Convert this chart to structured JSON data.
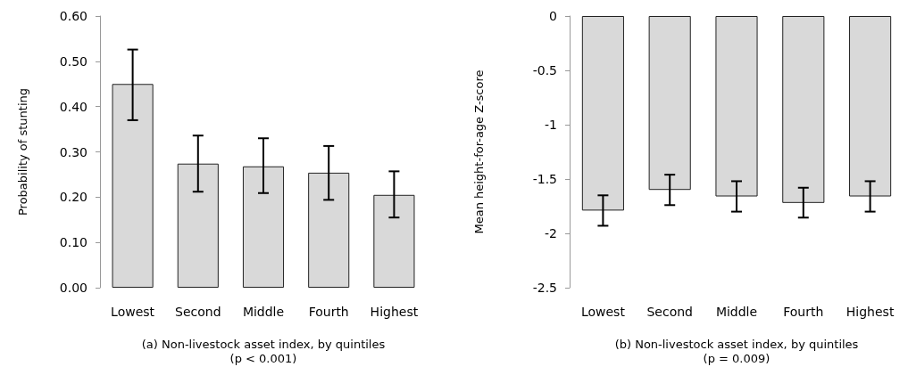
{
  "chart_data": [
    {
      "type": "bar",
      "categories": [
        "Lowest",
        "Second",
        "Middle",
        "Fourth",
        "Highest"
      ],
      "xlabel": "(a) Non-livestock asset index, by quintiles\n(p < 0.001)",
      "ylabel": "Probability of stunting",
      "series": [
        {
          "color": "#d9d9d9",
          "values": [
            0.45,
            0.274,
            0.268,
            0.254,
            0.205
          ],
          "errors": [
            [
              0.37,
              0.526
            ],
            [
              0.212,
              0.336
            ],
            [
              0.209,
              0.33
            ],
            [
              0.194,
              0.313
            ],
            [
              0.155,
              0.257
            ]
          ]
        }
      ],
      "ylim": [
        0,
        0.6
      ],
      "yticks": [
        {
          "value": 0,
          "label": "0.00"
        },
        {
          "value": 0.1,
          "label": "0.10"
        },
        {
          "value": 0.2,
          "label": "0.20"
        },
        {
          "value": 0.3,
          "label": "0.30"
        },
        {
          "value": 0.4,
          "label": "0.40"
        },
        {
          "value": 0.5,
          "label": "0.50"
        },
        {
          "value": 0.6,
          "label": "0.60"
        }
      ],
      "grid": false
    },
    {
      "type": "bar",
      "categories": [
        "Lowest",
        "Second",
        "Middle",
        "Fourth",
        "Highest"
      ],
      "xlabel": "(b) Non-livestock asset index, by quintiles\n(p = 0.009)",
      "ylabel": "Mean height-for-age Z-score",
      "series": [
        {
          "color": "#d9d9d9",
          "values": [
            -1.79,
            -1.6,
            -1.66,
            -1.72,
            -1.66
          ],
          "errors": [
            [
              -1.93,
              -1.65
            ],
            [
              -1.74,
              -1.46
            ],
            [
              -1.8,
              -1.52
            ],
            [
              -1.855,
              -1.58
            ],
            [
              -1.8,
              -1.52
            ]
          ]
        }
      ],
      "ylim": [
        -2.5,
        0
      ],
      "yticks": [
        -2.5,
        -2,
        -1.5,
        -1,
        -0.5,
        0
      ],
      "grid": false
    }
  ]
}
